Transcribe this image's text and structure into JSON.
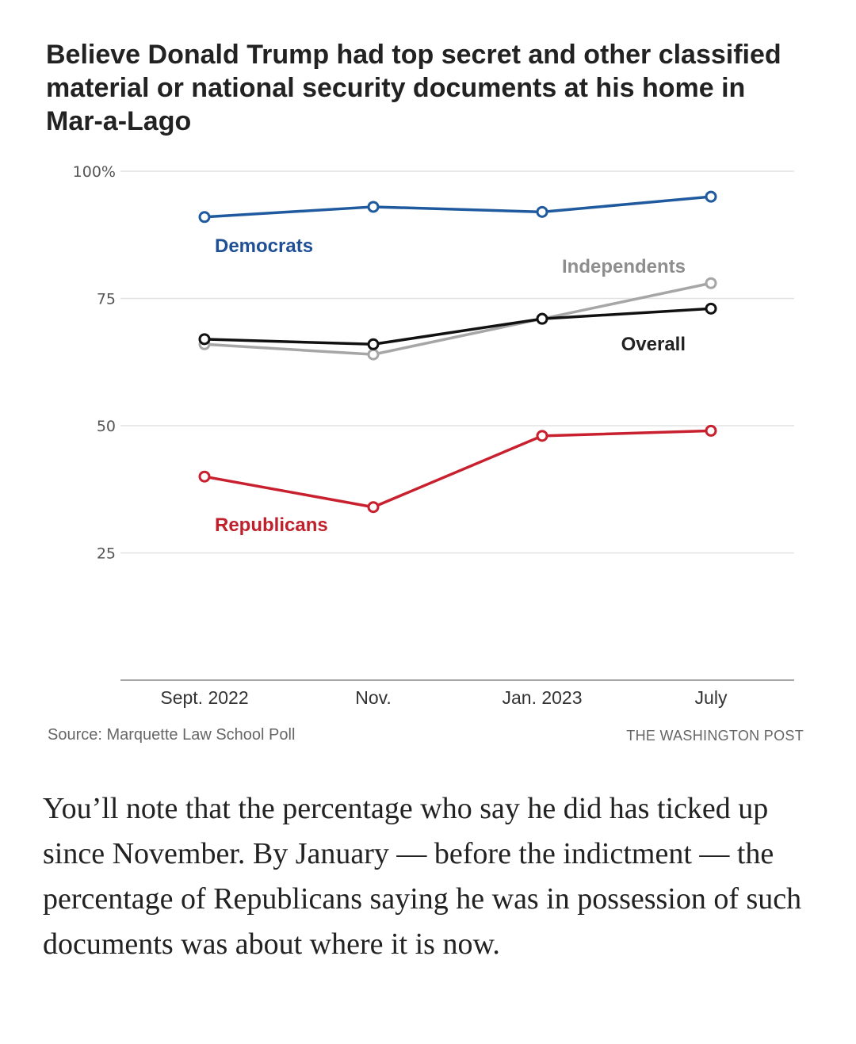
{
  "chart_data": {
    "type": "line",
    "title": {
      "part1": "Believe Donald Trump ",
      "part2_bold": "had top secret and other classified material or national security documents",
      "part3": " at his home in Mar-a-Lago"
    },
    "categories": [
      "Sept. 2022",
      "Nov.",
      "Jan. 2023",
      "July"
    ],
    "y_ticks": [
      "100%",
      "75",
      "50",
      "25"
    ],
    "ylim": [
      0,
      100
    ],
    "grid": true,
    "series": [
      {
        "name": "Democrats",
        "color": "#1f5a9e",
        "values": [
          91,
          93,
          92,
          95
        ]
      },
      {
        "name": "Independents",
        "color": "#a6a6a6",
        "values": [
          66,
          64,
          71,
          78
        ]
      },
      {
        "name": "Overall",
        "color": "#111111",
        "values": [
          67,
          66,
          71,
          73
        ]
      },
      {
        "name": "Republicans",
        "color": "#c8202e",
        "values": [
          40,
          34,
          48,
          49
        ]
      }
    ]
  },
  "footer": {
    "source": "Source: Marquette Law School Poll",
    "credit": "THE WASHINGTON POST"
  },
  "article_text": "You’ll note that the percentage who say he did has ticked up since November. By January — before the indictment — the percentage of Republicans saying he was in possession of such documents was about where it is now."
}
